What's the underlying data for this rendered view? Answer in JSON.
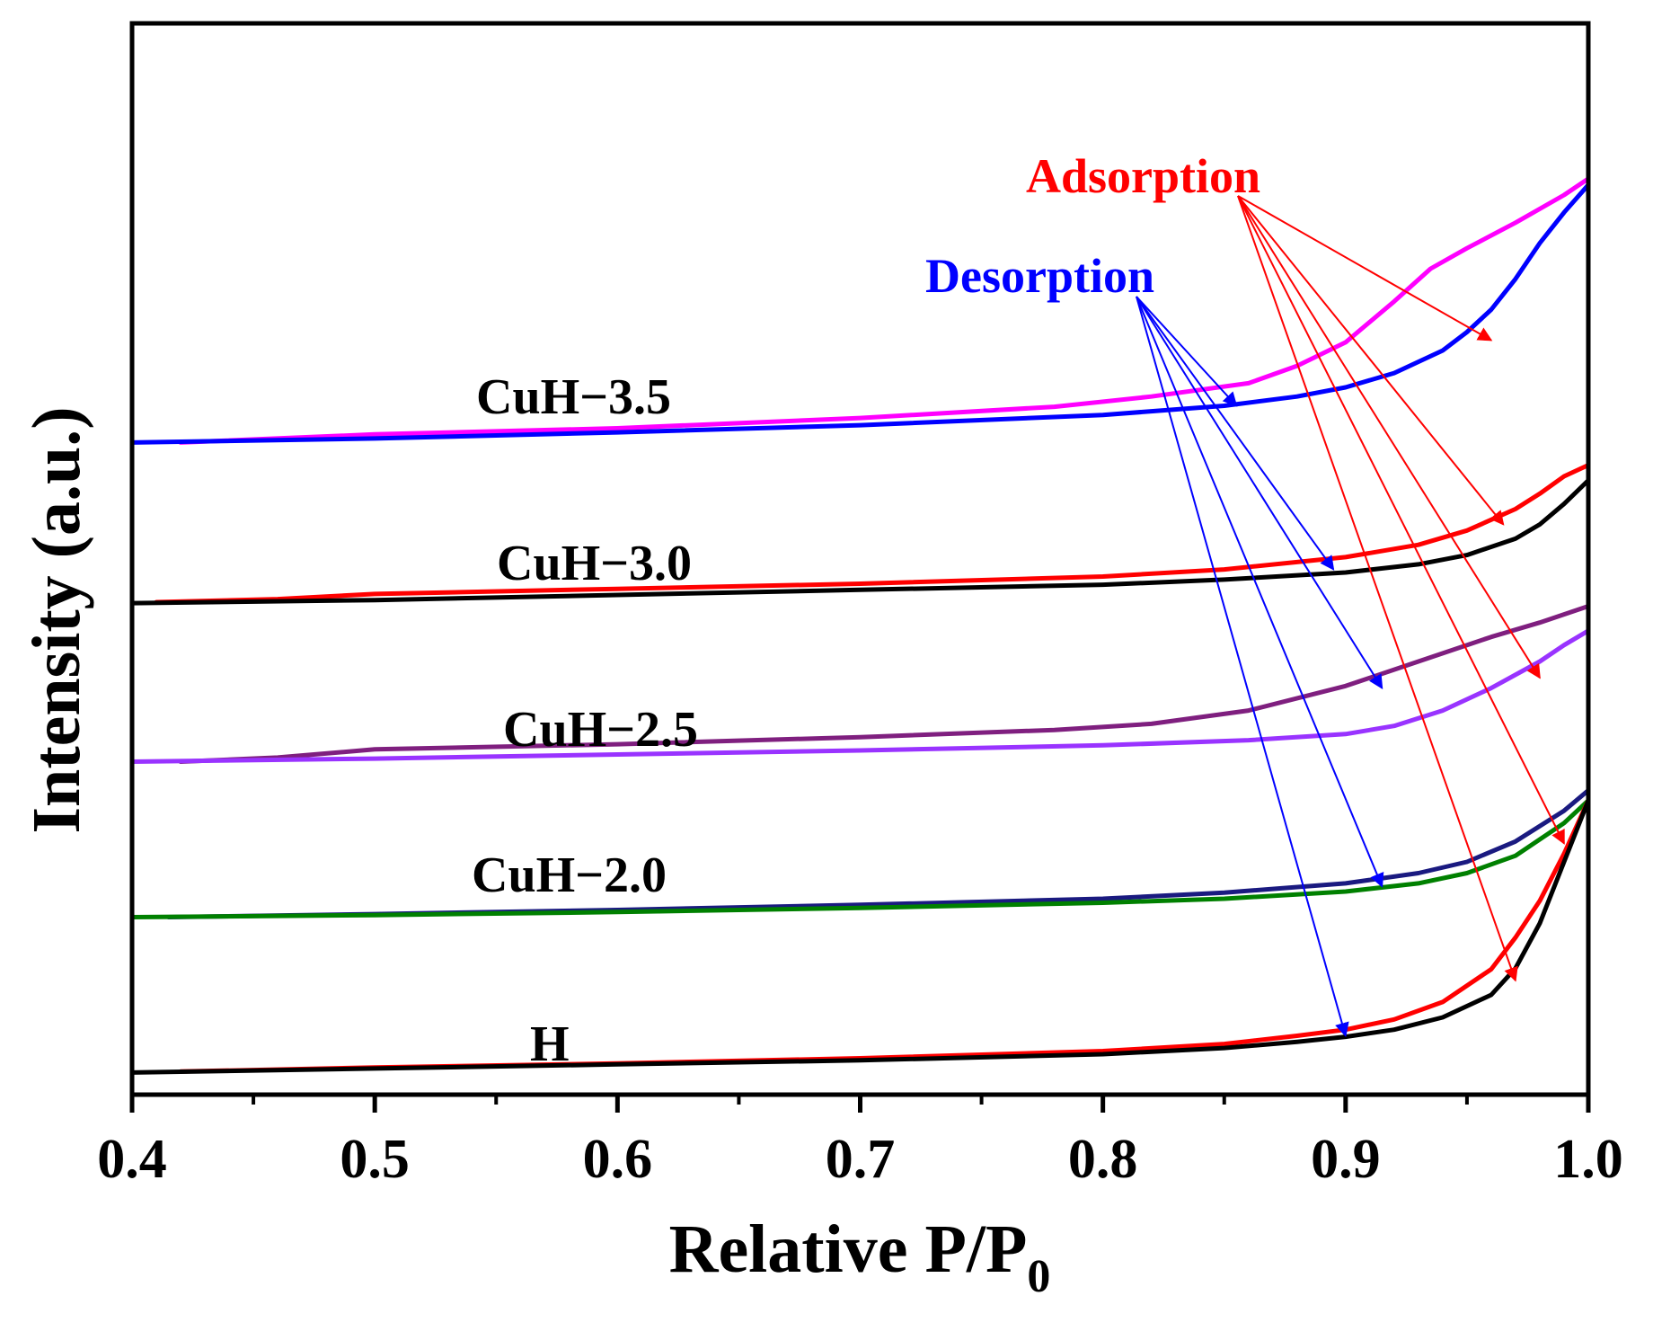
{
  "chart_data": {
    "type": "line",
    "xlabel": "Relative P/P",
    "xlabel_sub": "0",
    "ylabel": "Intensity (a.u.)",
    "xlim": [
      0.4,
      1.0
    ],
    "ylim": [
      0,
      100
    ],
    "x_ticks": [
      "0.4",
      "0.5",
      "0.6",
      "0.7",
      "0.8",
      "0.9",
      "1.0"
    ],
    "grid": false,
    "y_ticks_shown": false,
    "annotations": [
      {
        "text": "Adsorption",
        "color": "#ff0000"
      },
      {
        "text": "Desorption",
        "color": "#0000ff"
      }
    ],
    "samples": [
      {
        "label": "CuH−3.5",
        "series": [
          {
            "branch": "adsorption",
            "color": "#ff00ff",
            "x": [
              0.42,
              0.5,
              0.6,
              0.7,
              0.78,
              0.82,
              0.86,
              0.88,
              0.9,
              0.92,
              0.935,
              0.95,
              0.97,
              0.99,
              1.0
            ],
            "y": [
              62.0,
              62.8,
              63.4,
              64.4,
              65.5,
              66.5,
              67.8,
              69.5,
              71.8,
              75.8,
              79.0,
              81.0,
              83.5,
              86.2,
              87.8
            ]
          },
          {
            "branch": "desorption",
            "color": "#0000ff",
            "x": [
              0.4,
              0.5,
              0.6,
              0.7,
              0.8,
              0.85,
              0.88,
              0.9,
              0.92,
              0.94,
              0.95,
              0.96,
              0.97,
              0.98,
              0.99,
              1.0
            ],
            "y": [
              62.0,
              62.4,
              63.0,
              63.7,
              64.7,
              65.6,
              66.5,
              67.4,
              68.8,
              71.0,
              72.8,
              75.0,
              78.0,
              81.5,
              84.5,
              87.2
            ]
          }
        ]
      },
      {
        "label": "CuH−3.0",
        "series": [
          {
            "branch": "adsorption",
            "color": "#ff0000",
            "x": [
              0.41,
              0.46,
              0.5,
              0.6,
              0.7,
              0.8,
              0.85,
              0.9,
              0.93,
              0.95,
              0.97,
              0.98,
              0.99,
              1.0
            ],
            "y": [
              46.4,
              46.7,
              47.2,
              47.7,
              48.2,
              48.9,
              49.6,
              50.8,
              52.0,
              53.4,
              55.5,
              57.0,
              58.7,
              59.8
            ]
          },
          {
            "branch": "desorption",
            "color": "#000000",
            "x": [
              0.4,
              0.5,
              0.6,
              0.7,
              0.8,
              0.85,
              0.9,
              0.93,
              0.95,
              0.97,
              0.98,
              0.99,
              1.0
            ],
            "y": [
              46.3,
              46.6,
              47.1,
              47.6,
              48.1,
              48.6,
              49.3,
              50.1,
              51.0,
              52.6,
              54.0,
              56.0,
              58.3
            ]
          }
        ]
      },
      {
        "label": "CuH−2.5",
        "series": [
          {
            "branch": "adsorption",
            "color": "#7f1f7f",
            "x": [
              0.42,
              0.46,
              0.5,
              0.6,
              0.7,
              0.78,
              0.82,
              0.86,
              0.9,
              0.93,
              0.96,
              0.98,
              1.0
            ],
            "y": [
              30.8,
              31.2,
              32.0,
              32.5,
              33.2,
              33.9,
              34.5,
              35.8,
              38.2,
              40.6,
              43.0,
              44.4,
              46.0
            ]
          },
          {
            "branch": "desorption",
            "color": "#9933ff",
            "x": [
              0.4,
              0.5,
              0.6,
              0.7,
              0.8,
              0.86,
              0.9,
              0.92,
              0.94,
              0.96,
              0.98,
              0.99,
              1.0
            ],
            "y": [
              30.8,
              31.1,
              31.5,
              31.9,
              32.4,
              32.9,
              33.5,
              34.3,
              35.8,
              38.0,
              40.6,
              42.2,
              43.6
            ]
          }
        ]
      },
      {
        "label": "CuH−2.0",
        "series": [
          {
            "branch": "adsorption",
            "color": "#1a1a80",
            "x": [
              0.415,
              0.5,
              0.6,
              0.7,
              0.8,
              0.85,
              0.9,
              0.93,
              0.95,
              0.97,
              0.99,
              1.0
            ],
            "y": [
              15.6,
              15.9,
              16.3,
              16.8,
              17.4,
              18.0,
              18.9,
              19.9,
              21.0,
              23.0,
              26.0,
              28.0
            ]
          },
          {
            "branch": "desorption",
            "color": "#008000",
            "x": [
              0.4,
              0.5,
              0.6,
              0.7,
              0.8,
              0.85,
              0.9,
              0.93,
              0.95,
              0.97,
              0.99,
              1.0
            ],
            "y": [
              15.6,
              15.8,
              16.1,
              16.5,
              17.0,
              17.4,
              18.1,
              18.9,
              19.9,
              21.6,
              24.8,
              27.0
            ]
          }
        ]
      },
      {
        "label": "H",
        "series": [
          {
            "branch": "adsorption",
            "color": "#ff0000",
            "x": [
              0.42,
              0.5,
              0.6,
              0.7,
              0.8,
              0.85,
              0.88,
              0.9,
              0.92,
              0.94,
              0.96,
              0.97,
              0.98,
              0.99,
              1.0
            ],
            "y": [
              0.5,
              0.9,
              1.3,
              1.8,
              2.5,
              3.2,
              4.0,
              4.6,
              5.6,
              7.3,
              10.5,
              13.6,
              17.2,
              21.8,
              27.0
            ]
          },
          {
            "branch": "desorption",
            "color": "#000000",
            "x": [
              0.4,
              0.5,
              0.6,
              0.7,
              0.8,
              0.85,
              0.88,
              0.9,
              0.92,
              0.94,
              0.96,
              0.97,
              0.98,
              0.99,
              1.0
            ],
            "y": [
              0.4,
              0.8,
              1.2,
              1.6,
              2.2,
              2.8,
              3.4,
              3.9,
              4.6,
              5.8,
              8.0,
              10.6,
              15.0,
              21.0,
              27.0
            ]
          }
        ]
      }
    ]
  }
}
